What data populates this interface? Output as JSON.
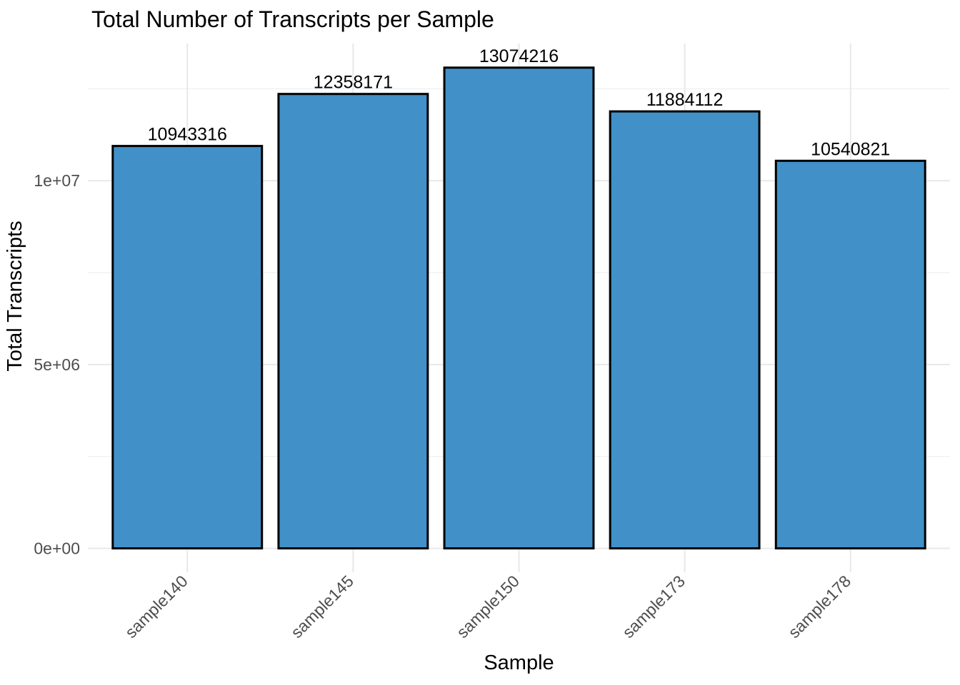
{
  "chart_data": {
    "type": "bar",
    "title": "Total Number of Transcripts per Sample",
    "xlabel": "Sample",
    "ylabel": "Total Transcripts",
    "categories": [
      "sample140",
      "sample145",
      "sample150",
      "sample173",
      "sample178"
    ],
    "values": [
      10943316,
      12358171,
      13074216,
      11884112,
      10540821
    ],
    "bar_value_labels": [
      "10943316",
      "12358171",
      "13074216",
      "11884112",
      "10540821"
    ],
    "y_ticks": [
      {
        "value": 0,
        "label": "0e+00"
      },
      {
        "value": 5000000,
        "label": "5e+06"
      },
      {
        "value": 10000000,
        "label": "1e+07"
      }
    ],
    "y_minor_ticks": [
      2500000,
      7500000,
      12500000
    ],
    "ylim": [
      -650000,
      13730000
    ],
    "x_tick_angle": 45,
    "grid": true,
    "legend": "none",
    "colors": {
      "bar_fill": "#4190C8",
      "bar_stroke": "#000000",
      "grid_major": "#E8E8E8",
      "grid_minor": "#F1F1F1",
      "tick_label": "#4D4D4D",
      "axis_title": "#000000",
      "title": "#000000",
      "value_label": "#000000",
      "background": "#FFFFFF"
    }
  }
}
